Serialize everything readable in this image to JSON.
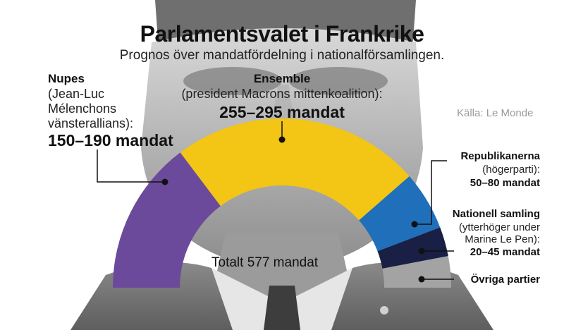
{
  "title": "Parlamentsvalet i Frankrike",
  "subtitle": "Prognos över mandatfördelning i nationalförsamlingen.",
  "source": "Källa: Le Monde",
  "total_label": "Totalt 577 mandat",
  "chart_data": {
    "type": "pie",
    "variant": "half-donut (hemicycle)",
    "total_seats": 577,
    "segments": [
      {
        "name": "Nupes",
        "description_lines": [
          "(Jean-Luc",
          "Mélenchons",
          "vänsterallians):"
        ],
        "value_label": "150–190 mandat",
        "range": [
          150,
          190
        ],
        "midpoint": 170,
        "color": "#6b4a9b"
      },
      {
        "name": "Ensemble",
        "description_lines": [
          "(president Macrons mittenkoalition):"
        ],
        "value_label": "255–295 mandat",
        "range": [
          255,
          295
        ],
        "midpoint": 275,
        "color": "#f3c514"
      },
      {
        "name": "Republikanerna",
        "description_lines": [
          "(högerparti):"
        ],
        "value_label": "50–80 mandat",
        "range": [
          50,
          80
        ],
        "midpoint": 65,
        "color": "#1f6fba"
      },
      {
        "name": "Nationell samling",
        "description_lines": [
          "(ytterhöger under",
          "Marine Le Pen):"
        ],
        "value_label": "20–45 mandat",
        "range": [
          20,
          45
        ],
        "midpoint": 32.5,
        "color": "#1a1f45"
      },
      {
        "name": "Övriga partier",
        "description_lines": [],
        "value_label": "",
        "range": null,
        "midpoint": 34.5,
        "color": "#a3a3a3"
      }
    ]
  }
}
